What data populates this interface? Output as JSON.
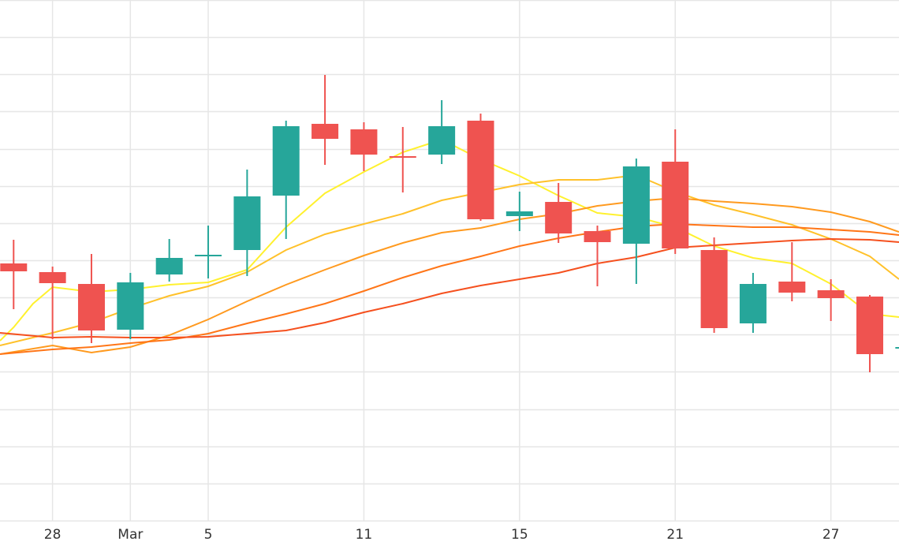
{
  "chart_data": {
    "type": "candlestick",
    "title": "",
    "xlabel": "",
    "ylabel": "",
    "x_ticks": [
      {
        "index": 0,
        "label": "28"
      },
      {
        "index": 2,
        "label": "Mar"
      },
      {
        "index": 4,
        "label": "5"
      },
      {
        "index": 8,
        "label": "11"
      },
      {
        "index": 12,
        "label": "15"
      },
      {
        "index": 16,
        "label": "21"
      },
      {
        "index": 20,
        "label": "27"
      }
    ],
    "x_range": [
      -1.35,
      21.75
    ],
    "y_range": [
      0,
      660
    ],
    "grid": true,
    "up_color": "#26a69a",
    "down_color": "#ef5350",
    "candles": [
      {
        "i": -1,
        "open": 326,
        "high": 356,
        "low": 268,
        "close": 316
      },
      {
        "i": 0,
        "open": 315,
        "high": 322,
        "low": 230,
        "close": 301
      },
      {
        "i": 1,
        "open": 300,
        "high": 338,
        "low": 225,
        "close": 241
      },
      {
        "i": 2,
        "open": 242,
        "high": 314,
        "low": 230,
        "close": 302
      },
      {
        "i": 3,
        "open": 312,
        "high": 357,
        "low": 303,
        "close": 333
      },
      {
        "i": 4,
        "open": 335,
        "high": 374,
        "low": 307,
        "close": 337
      },
      {
        "i": 5,
        "open": 343,
        "high": 445,
        "low": 310,
        "close": 411
      },
      {
        "i": 6,
        "open": 412,
        "high": 507,
        "low": 357,
        "close": 500
      },
      {
        "i": 7,
        "open": 503,
        "high": 565,
        "low": 451,
        "close": 484
      },
      {
        "i": 8,
        "open": 496,
        "high": 505,
        "low": 443,
        "close": 464
      },
      {
        "i": 9,
        "open": 462,
        "high": 499,
        "low": 416,
        "close": 460
      },
      {
        "i": 10,
        "open": 464,
        "high": 533,
        "low": 452,
        "close": 500
      },
      {
        "i": 11,
        "open": 507,
        "high": 516,
        "low": 380,
        "close": 382
      },
      {
        "i": 12,
        "open": 386,
        "high": 417,
        "low": 367,
        "close": 392
      },
      {
        "i": 13,
        "open": 404,
        "high": 428,
        "low": 352,
        "close": 364
      },
      {
        "i": 14,
        "open": 367,
        "high": 374,
        "low": 297,
        "close": 353
      },
      {
        "i": 15,
        "open": 351,
        "high": 459,
        "low": 300,
        "close": 449
      },
      {
        "i": 16,
        "open": 455,
        "high": 496,
        "low": 338,
        "close": 345
      },
      {
        "i": 17,
        "open": 343,
        "high": 359,
        "low": 238,
        "close": 244
      },
      {
        "i": 18,
        "open": 250,
        "high": 314,
        "low": 238,
        "close": 300
      },
      {
        "i": 19,
        "open": 303,
        "high": 353,
        "low": 278,
        "close": 289
      },
      {
        "i": 20,
        "open": 292,
        "high": 306,
        "low": 253,
        "close": 282
      },
      {
        "i": 21,
        "open": 284,
        "high": 286,
        "low": 188,
        "close": 211
      },
      {
        "i": 22,
        "open": 218,
        "high": 246,
        "low": 175,
        "close": 220
      }
    ],
    "moving_averages": [
      {
        "color": "#fff12e",
        "points": [
          [
            -1.35,
            228
          ],
          [
            -1,
            245
          ],
          [
            -0.5,
            275
          ],
          [
            0,
            296
          ],
          [
            1,
            290
          ],
          [
            2,
            293
          ],
          [
            3,
            299
          ],
          [
            4,
            302
          ],
          [
            5,
            318
          ],
          [
            6,
            372
          ],
          [
            7,
            415
          ],
          [
            8,
            442
          ],
          [
            9,
            467
          ],
          [
            10,
            483
          ],
          [
            11,
            458
          ],
          [
            12,
            437
          ],
          [
            13,
            412
          ],
          [
            14,
            390
          ],
          [
            15,
            385
          ],
          [
            16,
            372
          ],
          [
            17,
            348
          ],
          [
            18,
            333
          ],
          [
            19,
            326
          ],
          [
            20,
            300
          ],
          [
            21,
            262
          ],
          [
            21.75,
            258
          ]
        ]
      },
      {
        "color": "#ffc12a",
        "points": [
          [
            -1.35,
            222
          ],
          [
            0,
            238
          ],
          [
            1,
            251
          ],
          [
            2,
            269
          ],
          [
            3,
            285
          ],
          [
            4,
            297
          ],
          [
            5,
            315
          ],
          [
            6,
            343
          ],
          [
            7,
            363
          ],
          [
            8,
            376
          ],
          [
            9,
            389
          ],
          [
            10,
            406
          ],
          [
            11,
            416
          ],
          [
            12,
            426
          ],
          [
            13,
            432
          ],
          [
            14,
            432
          ],
          [
            15,
            438
          ],
          [
            16,
            417
          ],
          [
            17,
            400
          ],
          [
            18,
            388
          ],
          [
            19,
            375
          ],
          [
            20,
            357
          ],
          [
            21,
            335
          ],
          [
            21.75,
            306
          ]
        ]
      },
      {
        "color": "#ff9a1f",
        "points": [
          [
            -1.35,
            211
          ],
          [
            0,
            222
          ],
          [
            1,
            213
          ],
          [
            2,
            220
          ],
          [
            3,
            235
          ],
          [
            4,
            255
          ],
          [
            5,
            278
          ],
          [
            6,
            299
          ],
          [
            7,
            318
          ],
          [
            8,
            336
          ],
          [
            9,
            352
          ],
          [
            10,
            365
          ],
          [
            11,
            371
          ],
          [
            12,
            382
          ],
          [
            13,
            389
          ],
          [
            14,
            399
          ],
          [
            15,
            405
          ],
          [
            16,
            409
          ],
          [
            17,
            405
          ],
          [
            18,
            402
          ],
          [
            19,
            398
          ],
          [
            20,
            391
          ],
          [
            21,
            379
          ],
          [
            21.75,
            366
          ]
        ]
      },
      {
        "color": "#ff7618",
        "points": [
          [
            -1.35,
            211
          ],
          [
            0,
            217
          ],
          [
            1,
            220
          ],
          [
            2,
            225
          ],
          [
            3,
            229
          ],
          [
            4,
            237
          ],
          [
            5,
            250
          ],
          [
            6,
            262
          ],
          [
            7,
            275
          ],
          [
            8,
            291
          ],
          [
            9,
            308
          ],
          [
            10,
            323
          ],
          [
            11,
            335
          ],
          [
            12,
            348
          ],
          [
            13,
            358
          ],
          [
            14,
            366
          ],
          [
            15,
            373
          ],
          [
            16,
            376
          ],
          [
            17,
            374
          ],
          [
            18,
            372
          ],
          [
            19,
            372
          ],
          [
            20,
            369
          ],
          [
            21,
            366
          ],
          [
            21.75,
            362
          ]
        ]
      },
      {
        "color": "#f5501e",
        "points": [
          [
            -1.35,
            238
          ],
          [
            0,
            232
          ],
          [
            1,
            233
          ],
          [
            2,
            232
          ],
          [
            3,
            232
          ],
          [
            4,
            233
          ],
          [
            5,
            237
          ],
          [
            6,
            241
          ],
          [
            7,
            251
          ],
          [
            8,
            264
          ],
          [
            9,
            275
          ],
          [
            10,
            288
          ],
          [
            11,
            298
          ],
          [
            12,
            306
          ],
          [
            13,
            314
          ],
          [
            14,
            326
          ],
          [
            15,
            334
          ],
          [
            16,
            346
          ],
          [
            17,
            349
          ],
          [
            18,
            352
          ],
          [
            19,
            355
          ],
          [
            20,
            357
          ],
          [
            21,
            356
          ],
          [
            21.75,
            353
          ]
        ]
      }
    ]
  }
}
